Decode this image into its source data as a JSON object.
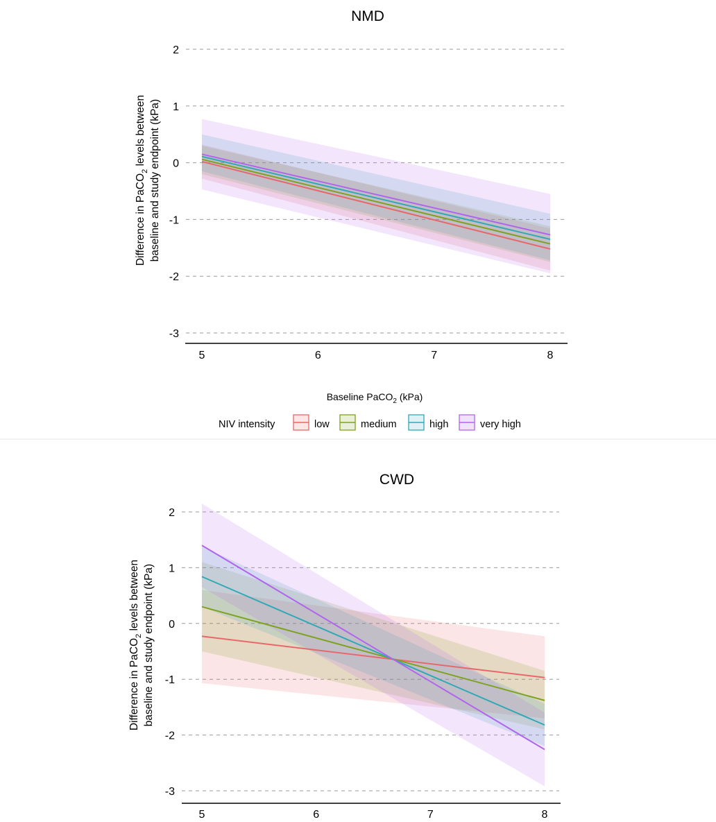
{
  "colors": {
    "low": "#E8676A",
    "medium": "#7DA21F",
    "high": "#2FA9B4",
    "very_high": "#B065EC"
  },
  "legend": {
    "title": "NIV intensity",
    "items": [
      "low",
      "medium",
      "high",
      "very high"
    ]
  },
  "chart_data": [
    {
      "type": "line",
      "title": "NMD",
      "xlabel_main": "Baseline PaCO",
      "xlabel_sub": "2",
      "xlabel_tail": " (kPa)",
      "ylabel_line1_main": "Difference in PaCO",
      "ylabel_line1_sub": "2",
      "ylabel_line1_tail": " levels between",
      "ylabel_line2": "baseline and study endpoint (kPa)",
      "xlim": [
        5,
        8
      ],
      "ylim": [
        -3,
        2
      ],
      "x_ticks": [
        "5",
        "6",
        "7",
        "8"
      ],
      "y_ticks": [
        "2",
        "1",
        "0",
        "-1",
        "-2",
        "-3"
      ],
      "grid": "horizontal dashed",
      "legend_position": "bottom",
      "series": [
        {
          "name": "low",
          "x": [
            5,
            8
          ],
          "y": [
            0.02,
            -1.52
          ],
          "lower": [
            -0.28,
            -1.9
          ],
          "upper": [
            0.32,
            -1.16
          ]
        },
        {
          "name": "medium",
          "x": [
            5,
            8
          ],
          "y": [
            0.06,
            -1.43
          ],
          "lower": [
            -0.2,
            -1.75
          ],
          "upper": [
            0.3,
            -1.12
          ]
        },
        {
          "name": "high",
          "x": [
            5,
            8
          ],
          "y": [
            0.11,
            -1.35
          ],
          "lower": [
            -0.15,
            -1.72
          ],
          "upper": [
            0.5,
            -0.9
          ]
        },
        {
          "name": "very high",
          "x": [
            5,
            8
          ],
          "y": [
            0.15,
            -1.27
          ],
          "lower": [
            -0.47,
            -1.95
          ],
          "upper": [
            0.77,
            -0.55
          ]
        }
      ]
    },
    {
      "type": "line",
      "title": "CWD",
      "ylabel_line1_main": "Difference in PaCO",
      "ylabel_line1_sub": "2",
      "ylabel_line1_tail": " levels between",
      "ylabel_line2": "baseline and study endpoint (kPa)",
      "xlim": [
        5,
        8
      ],
      "ylim": [
        -3,
        2
      ],
      "x_ticks": [
        "5",
        "6",
        "7",
        "8"
      ],
      "y_ticks": [
        "2",
        "1",
        "0",
        "-1",
        "-2",
        "-3"
      ],
      "grid": "horizontal dashed",
      "series": [
        {
          "name": "low",
          "x": [
            5,
            8
          ],
          "y": [
            -0.23,
            -0.97
          ],
          "lower": [
            -1.07,
            -1.7
          ],
          "upper": [
            0.6,
            -0.23
          ]
        },
        {
          "name": "medium",
          "x": [
            5,
            8
          ],
          "y": [
            0.3,
            -1.38
          ],
          "lower": [
            -0.5,
            -1.9
          ],
          "upper": [
            1.1,
            -0.85
          ]
        },
        {
          "name": "high",
          "x": [
            5,
            8
          ],
          "y": [
            0.84,
            -1.82
          ],
          "lower": [
            0.3,
            -2.2
          ],
          "upper": [
            1.38,
            -1.44
          ]
        },
        {
          "name": "very high",
          "x": [
            5,
            8
          ],
          "y": [
            1.4,
            -2.26
          ],
          "lower": [
            0.65,
            -2.92
          ],
          "upper": [
            2.15,
            -1.6
          ]
        }
      ]
    }
  ]
}
